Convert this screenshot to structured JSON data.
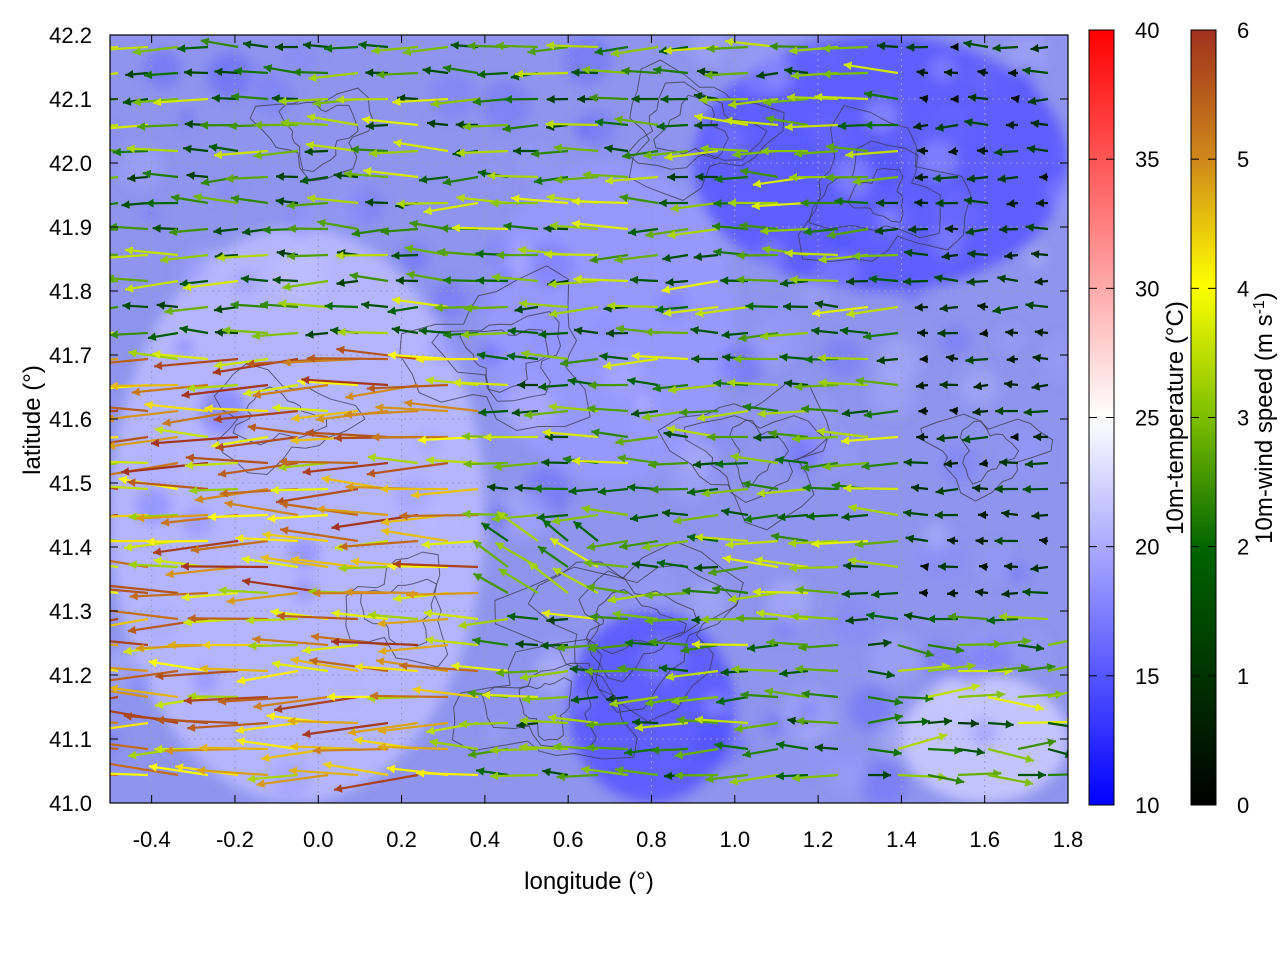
{
  "chart_data": {
    "type": "heatmap",
    "title": "",
    "xlabel": "longitude (°)",
    "ylabel": "latitude (°)",
    "xlim": [
      -0.5,
      1.8
    ],
    "ylim": [
      41.0,
      42.2
    ],
    "x_ticks": [
      "-0.4",
      "-0.2",
      "0.0",
      "0.2",
      "0.4",
      "0.6",
      "0.8",
      "1.0",
      "1.2",
      "1.4",
      "1.6",
      "1.8"
    ],
    "x_tick_values": [
      -0.4,
      -0.2,
      0.0,
      0.2,
      0.4,
      0.6,
      0.8,
      1.0,
      1.2,
      1.4,
      1.6,
      1.8
    ],
    "y_ticks": [
      "41.0",
      "41.1",
      "41.2",
      "41.3",
      "41.4",
      "41.5",
      "41.6",
      "41.7",
      "41.8",
      "41.9",
      "42.0",
      "42.1",
      "42.2"
    ],
    "y_tick_values": [
      41.0,
      41.1,
      41.2,
      41.3,
      41.4,
      41.5,
      41.6,
      41.7,
      41.8,
      41.9,
      42.0,
      42.1,
      42.2
    ],
    "grid": true,
    "overlays": [
      "terrain contours",
      "wind vectors"
    ],
    "temperature_colorbar": {
      "label": "10m-temperature (°C)",
      "range": [
        10,
        40
      ],
      "ticks": [
        "10",
        "15",
        "20",
        "25",
        "30",
        "35",
        "40"
      ],
      "tick_values": [
        10,
        15,
        20,
        25,
        30,
        35,
        40
      ],
      "colors": [
        "#0000ff",
        "#ffffff",
        "#ff0000"
      ]
    },
    "wind_colorbar": {
      "label_main": "10m-wind speed (m s",
      "label_sup": "-1",
      "label_end": ")",
      "range": [
        0,
        6
      ],
      "ticks": [
        "0",
        "1",
        "2",
        "3",
        "4",
        "5",
        "6"
      ],
      "tick_values": [
        0,
        1,
        2,
        3,
        4,
        5,
        6
      ],
      "colors": [
        "#000000",
        "#006400",
        "#7cbf00",
        "#ffff00",
        "#d08a1a",
        "#a0301e"
      ]
    },
    "temperature_field_approx_c": {
      "description_regions": [
        {
          "lon": [
            -0.5,
            0.4
          ],
          "lat": [
            41.0,
            41.9
          ],
          "value": 21
        },
        {
          "lon": [
            0.4,
            1.0
          ],
          "lat": [
            41.5,
            42.0
          ],
          "value": 19
        },
        {
          "lon": [
            0.9,
            1.8
          ],
          "lat": [
            41.8,
            42.2
          ],
          "value": 15
        },
        {
          "lon": [
            1.4,
            1.8
          ],
          "lat": [
            41.0,
            41.2
          ],
          "value": 22
        },
        {
          "lon": [
            0.6,
            1.0
          ],
          "lat": [
            41.0,
            41.3
          ],
          "value": 15
        }
      ]
    }
  }
}
